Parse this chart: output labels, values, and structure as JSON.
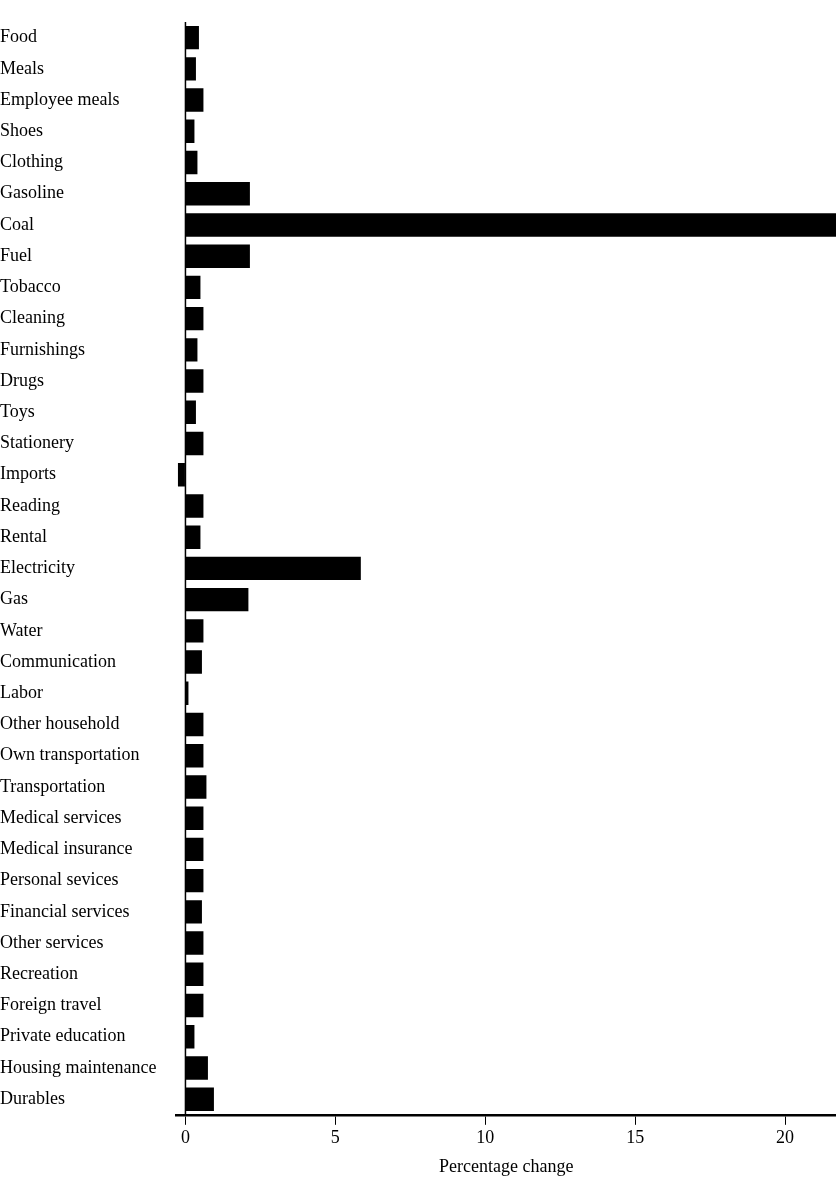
{
  "chart_data": {
    "type": "bar",
    "orientation": "horizontal",
    "xlabel": "Percentage change",
    "categories": [
      "Food",
      "Meals",
      "Employee meals",
      "Shoes",
      "Clothing",
      "Gasoline",
      "Coal",
      "Fuel",
      "Tobacco",
      "Cleaning",
      "Furnishings",
      "Drugs",
      "Toys",
      "Stationery",
      "Imports",
      "Reading",
      "Rental",
      "Electricity",
      "Gas",
      "Water",
      "Communication",
      "Labor",
      "Other household",
      "Own transportation",
      "Transportation",
      "Medical services",
      "Medical insurance",
      "Personal sevices",
      "Financial services",
      "Other services",
      "Recreation",
      "Foreign travel",
      "Private education",
      "Housing maintenance",
      "Durables"
    ],
    "values": [
      0.45,
      0.35,
      0.6,
      0.3,
      0.4,
      2.15,
      21.7,
      2.15,
      0.5,
      0.6,
      0.4,
      0.6,
      0.35,
      0.6,
      -0.25,
      0.6,
      0.5,
      5.85,
      2.1,
      0.6,
      0.55,
      0.1,
      0.6,
      0.6,
      0.7,
      0.6,
      0.6,
      0.6,
      0.55,
      0.6,
      0.6,
      0.6,
      0.3,
      0.75,
      0.95
    ],
    "color": "#000000",
    "xlim": [
      -0.3,
      21.7
    ],
    "xticks": [
      0,
      5,
      10,
      15,
      20
    ],
    "grid": false,
    "legend": false
  }
}
